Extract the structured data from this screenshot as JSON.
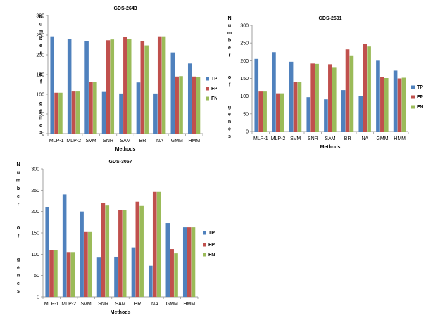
{
  "chart_data": [
    {
      "type": "bar",
      "title": "GDS-2643",
      "xlabel": "Methods",
      "ylabel": "Number of genes",
      "ylim": [
        0,
        300
      ],
      "yticks": [
        0,
        50,
        100,
        150,
        200,
        250,
        300
      ],
      "categories": [
        "MLP-1",
        "MLP-2",
        "SVM",
        "SNR",
        "SAM",
        "BR",
        "NA",
        "GMM",
        "HMM"
      ],
      "legend_position": "right",
      "series": [
        {
          "name": "TP",
          "color": "#4F81BD",
          "values": [
            247,
            241,
            235,
            106,
            102,
            130,
            102,
            206,
            178
          ]
        },
        {
          "name": "FP",
          "color": "#C0504D",
          "values": [
            104,
            107,
            132,
            237,
            246,
            234,
            247,
            145,
            145
          ]
        },
        {
          "name": "FN",
          "color": "#9BBB59",
          "values": [
            104,
            107,
            132,
            239,
            240,
            224,
            247,
            146,
            143
          ]
        }
      ]
    },
    {
      "type": "bar",
      "title": "GDS-2501",
      "xlabel": "Methods",
      "ylabel": "Number of genes",
      "ylim": [
        0,
        300
      ],
      "yticks": [
        0,
        50,
        100,
        150,
        200,
        250,
        300
      ],
      "categories": [
        "MLP-1",
        "MLP-2",
        "SVM",
        "SNR",
        "SAM",
        "BR",
        "NA",
        "GMM",
        "HMM"
      ],
      "legend_position": "right",
      "series": [
        {
          "name": "TP",
          "color": "#4F81BD",
          "values": [
            205,
            224,
            197,
            97,
            91,
            117,
            100,
            200,
            172
          ]
        },
        {
          "name": "FP",
          "color": "#C0504D",
          "values": [
            113,
            108,
            141,
            192,
            190,
            232,
            248,
            153,
            150
          ]
        },
        {
          "name": "FN",
          "color": "#9BBB59",
          "values": [
            113,
            108,
            141,
            191,
            182,
            215,
            240,
            151,
            152
          ]
        }
      ]
    },
    {
      "type": "bar",
      "title": "GDS-3057",
      "xlabel": "Methods",
      "ylabel": "Number of genes",
      "ylim": [
        0,
        300
      ],
      "yticks": [
        0,
        50,
        100,
        150,
        200,
        250,
        300
      ],
      "categories": [
        "MLP-1",
        "MLP-2",
        "SVM",
        "SNR",
        "SAM",
        "BR",
        "NA",
        "GMM",
        "HMM"
      ],
      "legend_position": "right",
      "series": [
        {
          "name": "TP",
          "color": "#4F81BD",
          "values": [
            211,
            240,
            200,
            92,
            94,
            116,
            73,
            173,
            163
          ]
        },
        {
          "name": "FP",
          "color": "#C0504D",
          "values": [
            109,
            105,
            152,
            220,
            203,
            223,
            246,
            112,
            163
          ]
        },
        {
          "name": "FN",
          "color": "#9BBB59",
          "values": [
            109,
            105,
            152,
            214,
            203,
            213,
            246,
            102,
            163
          ]
        }
      ]
    }
  ]
}
